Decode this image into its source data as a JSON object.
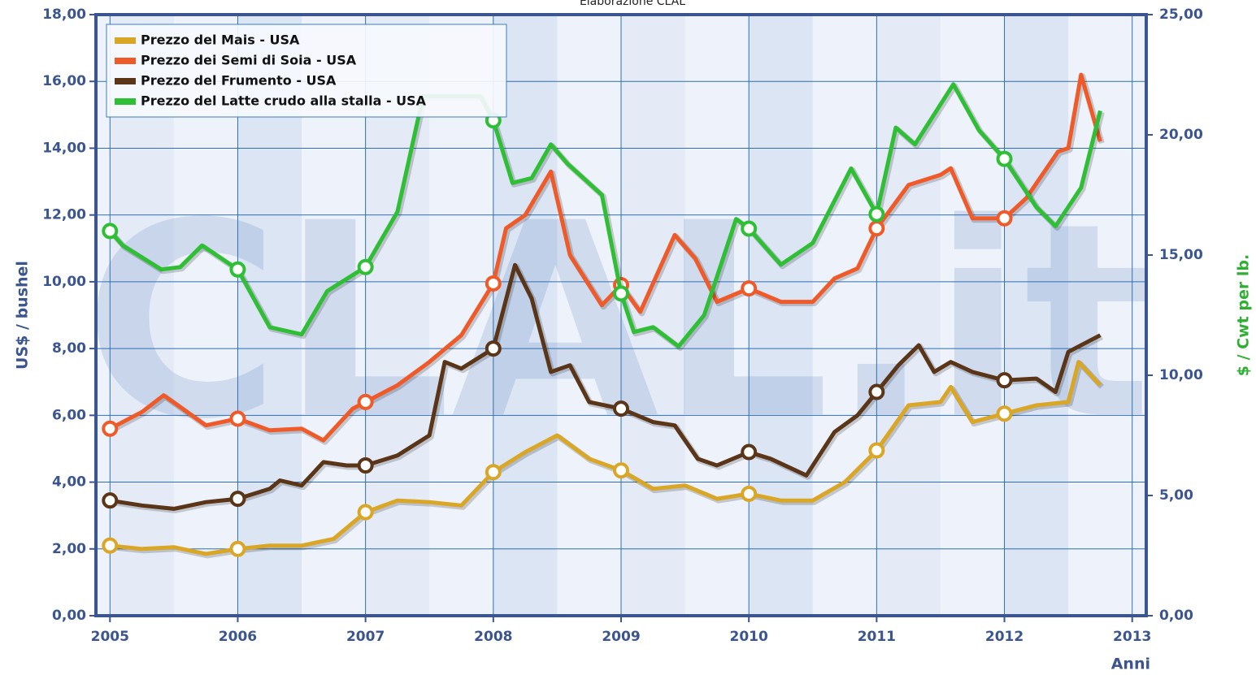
{
  "chart_data": {
    "type": "line",
    "subtitle": "Elaborazione CLAL",
    "watermark": "CLAL.it",
    "ylabel": "US$ / bushel",
    "y2label": "$ / Cwt per lb.",
    "xlabel": "Anni",
    "legend": "upper left",
    "grid": true,
    "xlim": [
      2004.89,
      2013.11
    ],
    "xticks": [
      2005,
      2006,
      2007,
      2008,
      2009,
      2010,
      2011,
      2012,
      2013
    ],
    "ylim": [
      0,
      18
    ],
    "yticks": [
      {
        "value": 0,
        "label": "0,00"
      },
      {
        "value": 2,
        "label": "2,00"
      },
      {
        "value": 4,
        "label": "4,00"
      },
      {
        "value": 6,
        "label": "6,00"
      },
      {
        "value": 8,
        "label": "8,00"
      },
      {
        "value": 10,
        "label": "10,00"
      },
      {
        "value": 12,
        "label": "12,00"
      },
      {
        "value": 14,
        "label": "14,00"
      },
      {
        "value": 16,
        "label": "16,00"
      },
      {
        "value": 18,
        "label": "18,00"
      }
    ],
    "y2lim": [
      0,
      25
    ],
    "y2ticks": [
      {
        "value": 0,
        "label": "0,00"
      },
      {
        "value": 5,
        "label": "5,00"
      },
      {
        "value": 10,
        "label": "10,00"
      },
      {
        "value": 15,
        "label": "15,00"
      },
      {
        "value": 20,
        "label": "20,00"
      },
      {
        "value": 25,
        "label": "25,00"
      }
    ],
    "series": [
      {
        "name": "Prezzo del Mais - USA",
        "color": "#d9a626",
        "x": [
          2005,
          2005.25,
          2005.5,
          2005.75,
          2006,
          2006.25,
          2006.5,
          2006.75,
          2007,
          2007.25,
          2007.5,
          2007.75,
          2008,
          2008.25,
          2008.5,
          2008.75,
          2009,
          2009.25,
          2009.5,
          2009.75,
          2010,
          2010.25,
          2010.5,
          2010.75,
          2011,
          2011.25,
          2011.5,
          2011.58,
          2011.75,
          2012,
          2012.25,
          2012.5,
          2012.58,
          2012.75
        ],
        "values": [
          2.1,
          2.0,
          2.05,
          1.85,
          2.0,
          2.1,
          2.1,
          2.3,
          3.1,
          3.45,
          3.4,
          3.3,
          4.3,
          4.9,
          5.4,
          4.7,
          4.35,
          3.8,
          3.9,
          3.5,
          3.65,
          3.45,
          3.45,
          4.0,
          4.95,
          6.3,
          6.4,
          6.85,
          5.8,
          6.05,
          6.3,
          6.4,
          7.6,
          6.9
        ]
      },
      {
        "name": "Prezzo dei Semi di Soia - USA",
        "color": "#f05a28",
        "x": [
          2005,
          2005.25,
          2005.42,
          2005.75,
          2006,
          2006.25,
          2006.5,
          2006.67,
          2006.9,
          2007,
          2007.25,
          2007.5,
          2007.75,
          2008,
          2008.1,
          2008.25,
          2008.45,
          2008.6,
          2008.85,
          2009,
          2009.15,
          2009.42,
          2009.58,
          2009.75,
          2010,
          2010.25,
          2010.5,
          2010.67,
          2010.85,
          2011,
          2011.25,
          2011.5,
          2011.58,
          2011.75,
          2012,
          2012.17,
          2012.42,
          2012.5,
          2012.6,
          2012.75
        ],
        "values": [
          5.6,
          6.1,
          6.6,
          5.7,
          5.9,
          5.55,
          5.6,
          5.25,
          6.2,
          6.4,
          6.9,
          7.6,
          8.4,
          9.95,
          11.6,
          12.0,
          13.3,
          10.8,
          9.3,
          9.9,
          9.1,
          11.4,
          10.7,
          9.4,
          9.8,
          9.4,
          9.4,
          10.1,
          10.4,
          11.6,
          12.9,
          13.2,
          13.4,
          11.9,
          11.9,
          12.5,
          13.9,
          14.0,
          16.2,
          14.2
        ]
      },
      {
        "name": "Prezzo del Frumento - USA",
        "color": "#5a3518",
        "x": [
          2005,
          2005.25,
          2005.5,
          2005.75,
          2006,
          2006.25,
          2006.33,
          2006.5,
          2006.67,
          2006.85,
          2007,
          2007.25,
          2007.5,
          2007.62,
          2007.75,
          2008,
          2008.17,
          2008.3,
          2008.45,
          2008.6,
          2008.75,
          2009,
          2009.25,
          2009.42,
          2009.6,
          2009.75,
          2010,
          2010.17,
          2010.45,
          2010.67,
          2010.85,
          2011,
          2011.17,
          2011.33,
          2011.45,
          2011.58,
          2011.75,
          2012,
          2012.25,
          2012.4,
          2012.5,
          2012.75
        ],
        "values": [
          3.45,
          3.3,
          3.2,
          3.4,
          3.5,
          3.8,
          4.05,
          3.9,
          4.6,
          4.5,
          4.5,
          4.8,
          5.4,
          7.6,
          7.4,
          8.0,
          10.5,
          9.5,
          7.3,
          7.5,
          6.4,
          6.2,
          5.8,
          5.7,
          4.7,
          4.5,
          4.9,
          4.7,
          4.2,
          5.5,
          6.0,
          6.7,
          7.5,
          8.1,
          7.3,
          7.6,
          7.3,
          7.05,
          7.1,
          6.7,
          7.9,
          8.4
        ]
      },
      {
        "name": "Prezzo del Latte crudo alla stalla - USA",
        "color": "#2fbf34",
        "axis": "y2",
        "x": [
          2005,
          2005.1,
          2005.4,
          2005.55,
          2005.72,
          2006,
          2006.25,
          2006.5,
          2006.7,
          2007,
          2007.25,
          2007.45,
          2007.6,
          2007.9,
          2008,
          2008.15,
          2008.3,
          2008.45,
          2008.58,
          2008.85,
          2009,
          2009.1,
          2009.25,
          2009.45,
          2009.65,
          2009.9,
          2010,
          2010.25,
          2010.5,
          2010.8,
          2011,
          2011.15,
          2011.3,
          2011.6,
          2011.8,
          2012,
          2012.25,
          2012.4,
          2012.6,
          2012.75
        ],
        "values": [
          16.0,
          15.4,
          14.4,
          14.5,
          15.4,
          14.4,
          12.0,
          11.7,
          13.5,
          14.5,
          16.8,
          21.6,
          21.6,
          21.6,
          20.6,
          18.0,
          18.2,
          19.6,
          18.8,
          17.5,
          13.4,
          11.8,
          12.0,
          11.2,
          12.5,
          16.5,
          16.1,
          14.6,
          15.5,
          18.6,
          16.7,
          20.3,
          19.6,
          22.1,
          20.2,
          19.0,
          17.0,
          16.2,
          17.8,
          21.0
        ]
      }
    ]
  }
}
